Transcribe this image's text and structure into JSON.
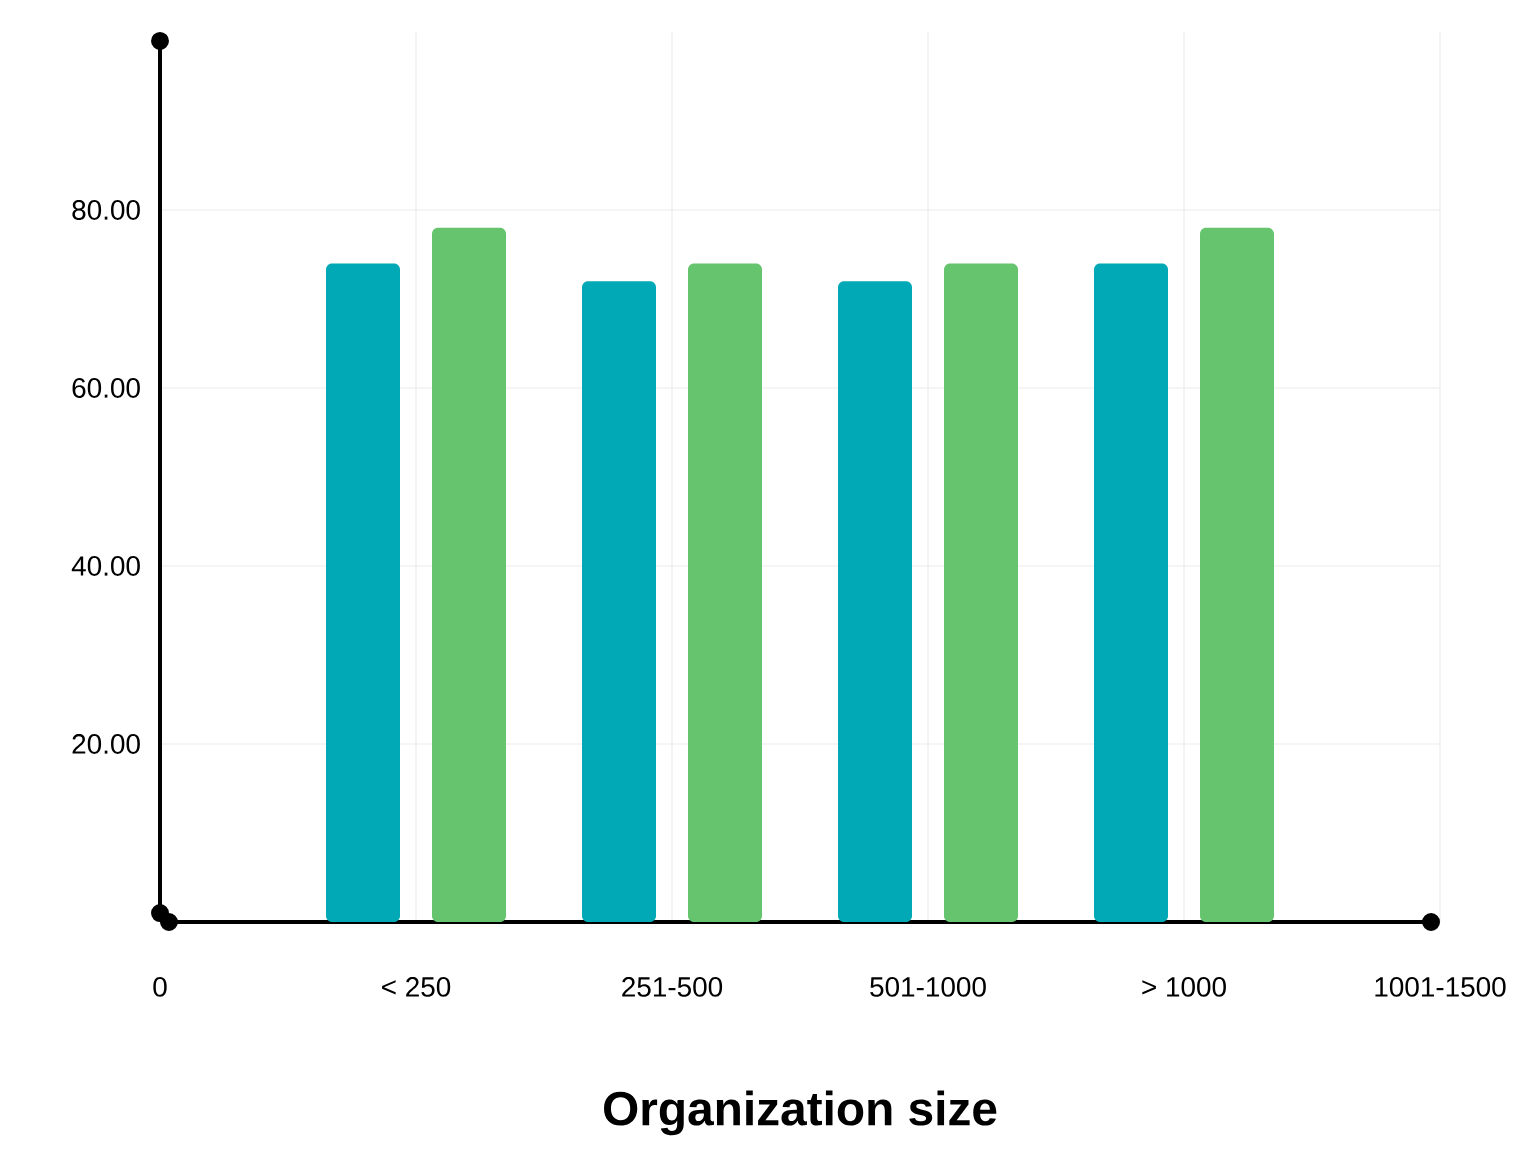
{
  "chart_data": {
    "type": "bar",
    "xlabel": "Organization size",
    "categories": [
      "0",
      "< 250",
      "251-500",
      "501-1000",
      "> 1000",
      "1001-1500"
    ],
    "series": [
      {
        "color": "#00a9b5",
        "values": [
          null,
          74,
          72,
          72,
          74,
          null
        ]
      },
      {
        "color": "#66c46f",
        "values": [
          null,
          78,
          74,
          74,
          78,
          null
        ]
      }
    ],
    "ylim": [
      0,
      100
    ],
    "yticks": [
      {
        "value": 20,
        "label": "20.00"
      },
      {
        "value": 40,
        "label": "40.00"
      },
      {
        "value": 60,
        "label": "60.00"
      },
      {
        "value": 80,
        "label": "80.00"
      }
    ],
    "grid": true
  }
}
